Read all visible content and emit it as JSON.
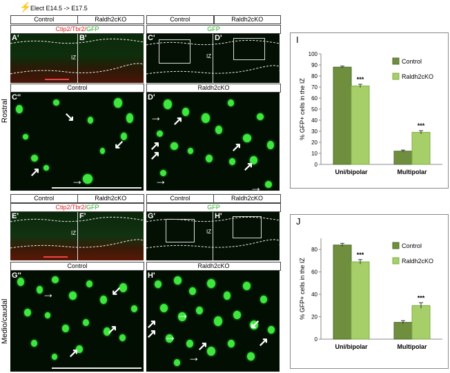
{
  "header": {
    "electroporation": "Elect E14.5 -> E17.5"
  },
  "labels": {
    "control": "Control",
    "ko": "Raldh2cKO",
    "stain_red": "Ctip2/Tbr2/",
    "stain_green": "GFP",
    "gfp": "GFP",
    "iz": "IZ",
    "rostral": "Rostral",
    "medio": "Medio/caudal"
  },
  "panels": {
    "A": "A'",
    "B": "B'",
    "C": "C'",
    "D": "D'",
    "C2": "C''",
    "D2": "D'",
    "E": "E'",
    "F": "F'",
    "G": "G'",
    "H": "H'",
    "G2": "G''",
    "H2": "H'"
  },
  "chart_data": [
    {
      "panel": "I",
      "type": "bar",
      "categories": [
        "Uni/bipolar",
        "Multipolar"
      ],
      "series": [
        {
          "name": "Control",
          "values": [
            88,
            12
          ],
          "errors": [
            1,
            1
          ]
        },
        {
          "name": "Raldh2cKO",
          "values": [
            71,
            29
          ],
          "errors": [
            1.5,
            1.5
          ]
        }
      ],
      "significance": [
        "***",
        "***"
      ],
      "ylabel": "% GFP+ cells in the IZ",
      "ylim": [
        0,
        100
      ],
      "yticks": [
        0,
        10,
        20,
        30,
        40,
        50,
        60,
        70,
        80,
        90,
        100
      ],
      "legend": "top-right",
      "colors": [
        "#6f8f3f",
        "#a6cf6a"
      ]
    },
    {
      "panel": "J",
      "type": "bar",
      "categories": [
        "Uni/bipolar",
        "Multipolar"
      ],
      "series": [
        {
          "name": "Control",
          "values": [
            84,
            15
          ],
          "errors": [
            1.5,
            1.5
          ]
        },
        {
          "name": "Raldh2cKO",
          "values": [
            69,
            30
          ],
          "errors": [
            2,
            2.5
          ]
        }
      ],
      "significance": [
        "***",
        "***"
      ],
      "ylabel": "% GFP+ cells in the IZ",
      "ylim": [
        0,
        90
      ],
      "yticks": [
        0,
        20,
        40,
        60,
        80
      ],
      "legend": "top-right",
      "colors": [
        "#6f8f3f",
        "#a6cf6a"
      ]
    }
  ]
}
